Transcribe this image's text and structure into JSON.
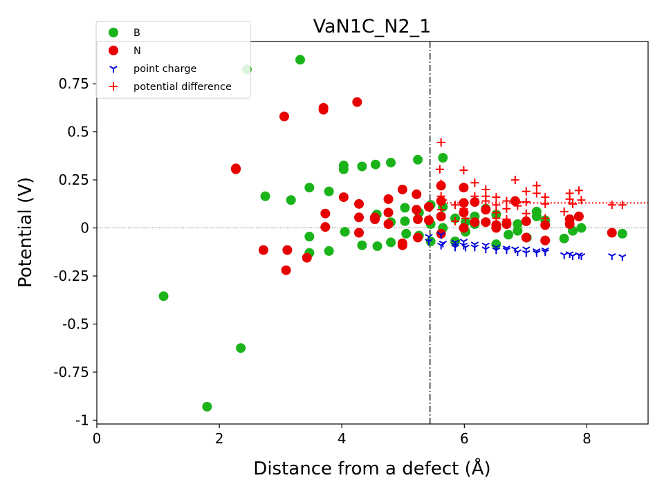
{
  "chart_data": {
    "type": "scatter",
    "title": "VaN1C_N2_1",
    "xlabel": "Distance from a defect (Å)",
    "ylabel": "Potential (V)",
    "xlim": [
      0,
      9
    ],
    "ylim": [
      -1.02,
      0.97
    ],
    "xticks": [
      0,
      2,
      4,
      6,
      8
    ],
    "xtick_labels": [
      "0",
      "2",
      "4",
      "6",
      "8"
    ],
    "yticks": [
      -1,
      -0.75,
      -0.5,
      -0.25,
      0,
      0.25,
      0.5,
      0.75
    ],
    "ytick_labels": [
      "-1",
      "-0.75",
      "-0.5",
      "-0.25",
      "0",
      "0.25",
      "0.5",
      "0.75"
    ],
    "legend_position": "top-left",
    "vline_x": 5.44,
    "hline_y": 0,
    "avg_potential_line": {
      "x_start": 5.6,
      "y": 0.13,
      "color": "#ff0000",
      "style": "dotted"
    },
    "series": [
      {
        "name": "B",
        "marker": "circle",
        "color": "#1ab31a",
        "points": [
          [
            1.09,
            -0.355
          ],
          [
            1.8,
            -0.93
          ],
          [
            2.35,
            -0.625
          ],
          [
            2.45,
            0.825
          ],
          [
            2.75,
            0.165
          ],
          [
            3.17,
            0.145
          ],
          [
            3.32,
            0.875
          ],
          [
            3.47,
            0.21
          ],
          [
            3.47,
            -0.045
          ],
          [
            3.47,
            -0.13
          ],
          [
            3.79,
            0.19
          ],
          [
            3.79,
            -0.12
          ],
          [
            4.03,
            0.325
          ],
          [
            4.03,
            0.305
          ],
          [
            4.05,
            -0.02
          ],
          [
            4.33,
            0.32
          ],
          [
            4.33,
            -0.09
          ],
          [
            4.55,
            0.33
          ],
          [
            4.57,
            0.07
          ],
          [
            4.58,
            -0.095
          ],
          [
            4.8,
            0.34
          ],
          [
            4.8,
            0.03
          ],
          [
            4.8,
            -0.075
          ],
          [
            5.03,
            0.105
          ],
          [
            5.03,
            0.035
          ],
          [
            5.05,
            -0.03
          ],
          [
            5.24,
            0.355
          ],
          [
            5.26,
            0.08
          ],
          [
            5.26,
            -0.04
          ],
          [
            5.45,
            0.12
          ],
          [
            5.45,
            0.02
          ],
          [
            5.45,
            -0.07
          ],
          [
            5.65,
            0.365
          ],
          [
            5.65,
            0.0
          ],
          [
            5.65,
            0.11
          ],
          [
            5.85,
            0.05
          ],
          [
            5.85,
            -0.07
          ],
          [
            6.02,
            0.03
          ],
          [
            6.02,
            -0.02
          ],
          [
            6.17,
            0.06
          ],
          [
            6.17,
            0.02
          ],
          [
            6.35,
            0.1
          ],
          [
            6.35,
            0.03
          ],
          [
            6.52,
            0.07
          ],
          [
            6.52,
            -0.085
          ],
          [
            6.72,
            -0.035
          ],
          [
            6.87,
            0.02
          ],
          [
            6.87,
            -0.015
          ],
          [
            7.02,
            -0.05
          ],
          [
            7.18,
            0.085
          ],
          [
            7.18,
            0.06
          ],
          [
            7.32,
            0.04
          ],
          [
            7.63,
            -0.055
          ],
          [
            7.77,
            -0.015
          ],
          [
            7.91,
            0.0
          ],
          [
            8.58,
            -0.03
          ]
        ]
      },
      {
        "name": "N",
        "marker": "circle",
        "color": "#e60000",
        "points": [
          [
            2.27,
            0.31
          ],
          [
            2.27,
            0.305
          ],
          [
            2.72,
            -0.115
          ],
          [
            3.06,
            0.58
          ],
          [
            3.09,
            -0.22
          ],
          [
            3.11,
            -0.115
          ],
          [
            3.43,
            -0.155
          ],
          [
            3.7,
            0.625
          ],
          [
            3.7,
            0.615
          ],
          [
            3.73,
            0.075
          ],
          [
            3.73,
            0.005
          ],
          [
            4.03,
            0.16
          ],
          [
            4.25,
            0.655
          ],
          [
            4.28,
            0.125
          ],
          [
            4.28,
            0.055
          ],
          [
            4.28,
            -0.025
          ],
          [
            4.54,
            0.055
          ],
          [
            4.54,
            0.045
          ],
          [
            4.76,
            0.15
          ],
          [
            4.76,
            0.08
          ],
          [
            4.76,
            0.02
          ],
          [
            4.99,
            0.2
          ],
          [
            4.99,
            -0.08
          ],
          [
            4.99,
            -0.09
          ],
          [
            5.22,
            0.175
          ],
          [
            5.22,
            0.095
          ],
          [
            5.24,
            0.045
          ],
          [
            5.24,
            -0.05
          ],
          [
            5.42,
            0.11
          ],
          [
            5.42,
            0.04
          ],
          [
            5.62,
            0.22
          ],
          [
            5.62,
            0.14
          ],
          [
            5.62,
            0.06
          ],
          [
            5.62,
            -0.03
          ],
          [
            5.99,
            0.21
          ],
          [
            5.99,
            0.13
          ],
          [
            5.99,
            0.08
          ],
          [
            5.99,
            0.0
          ],
          [
            6.17,
            0.135
          ],
          [
            6.17,
            0.03
          ],
          [
            6.35,
            0.095
          ],
          [
            6.35,
            0.03
          ],
          [
            6.52,
            0.015
          ],
          [
            6.52,
            0.0
          ],
          [
            6.69,
            0.025
          ],
          [
            6.69,
            0.02
          ],
          [
            6.83,
            0.14
          ],
          [
            7.01,
            0.035
          ],
          [
            7.01,
            -0.05
          ],
          [
            7.32,
            0.015
          ],
          [
            7.32,
            -0.065
          ],
          [
            7.72,
            0.045
          ],
          [
            7.72,
            0.02
          ],
          [
            7.87,
            0.06
          ],
          [
            8.41,
            -0.025
          ]
        ]
      },
      {
        "name": "point charge",
        "marker": "tri_down",
        "color": "#0000dd",
        "points": [
          [
            5.42,
            -0.045
          ],
          [
            5.42,
            -0.07
          ],
          [
            5.62,
            -0.035
          ],
          [
            5.62,
            -0.09
          ],
          [
            5.65,
            -0.08
          ],
          [
            5.85,
            -0.075
          ],
          [
            5.85,
            -0.09
          ],
          [
            5.85,
            -0.1
          ],
          [
            5.99,
            -0.07
          ],
          [
            5.99,
            -0.09
          ],
          [
            6.02,
            -0.1
          ],
          [
            6.17,
            -0.085
          ],
          [
            6.17,
            -0.1
          ],
          [
            6.35,
            -0.09
          ],
          [
            6.35,
            -0.11
          ],
          [
            6.52,
            -0.1
          ],
          [
            6.52,
            -0.115
          ],
          [
            6.69,
            -0.105
          ],
          [
            6.69,
            -0.115
          ],
          [
            6.83,
            -0.11
          ],
          [
            6.87,
            -0.125
          ],
          [
            7.01,
            -0.11
          ],
          [
            7.01,
            -0.13
          ],
          [
            7.18,
            -0.12
          ],
          [
            7.18,
            -0.13
          ],
          [
            7.32,
            -0.115
          ],
          [
            7.32,
            -0.125
          ],
          [
            7.63,
            -0.14
          ],
          [
            7.72,
            -0.135
          ],
          [
            7.77,
            -0.145
          ],
          [
            7.87,
            -0.14
          ],
          [
            7.91,
            -0.145
          ],
          [
            8.41,
            -0.145
          ],
          [
            8.58,
            -0.15
          ]
        ]
      },
      {
        "name": "potential difference",
        "marker": "plus",
        "color": "#ff0000",
        "points": [
          [
            5.62,
            0.445
          ],
          [
            5.6,
            0.305
          ],
          [
            5.62,
            0.23
          ],
          [
            5.62,
            0.165
          ],
          [
            5.62,
            0.095
          ],
          [
            5.65,
            0.145
          ],
          [
            5.85,
            0.12
          ],
          [
            5.85,
            0.035
          ],
          [
            5.99,
            0.3
          ],
          [
            5.99,
            0.13
          ],
          [
            5.99,
            0.1
          ],
          [
            6.02,
            0.05
          ],
          [
            6.17,
            0.235
          ],
          [
            6.17,
            0.165
          ],
          [
            6.17,
            0.14
          ],
          [
            6.35,
            0.2
          ],
          [
            6.35,
            0.165
          ],
          [
            6.35,
            0.14
          ],
          [
            6.35,
            0.1
          ],
          [
            6.52,
            0.16
          ],
          [
            6.52,
            0.12
          ],
          [
            6.52,
            0.08
          ],
          [
            6.52,
            0.05
          ],
          [
            6.69,
            0.14
          ],
          [
            6.69,
            0.1
          ],
          [
            6.69,
            0.045
          ],
          [
            6.83,
            0.25
          ],
          [
            6.87,
            0.135
          ],
          [
            6.87,
            0.115
          ],
          [
            7.01,
            0.19
          ],
          [
            7.01,
            0.135
          ],
          [
            7.01,
            0.075
          ],
          [
            7.18,
            0.22
          ],
          [
            7.18,
            0.18
          ],
          [
            7.32,
            0.16
          ],
          [
            7.32,
            0.125
          ],
          [
            7.32,
            0.05
          ],
          [
            7.63,
            0.085
          ],
          [
            7.72,
            0.18
          ],
          [
            7.72,
            0.15
          ],
          [
            7.77,
            0.125
          ],
          [
            7.87,
            0.195
          ],
          [
            7.91,
            0.145
          ],
          [
            8.41,
            0.12
          ],
          [
            8.58,
            0.12
          ]
        ]
      }
    ]
  }
}
